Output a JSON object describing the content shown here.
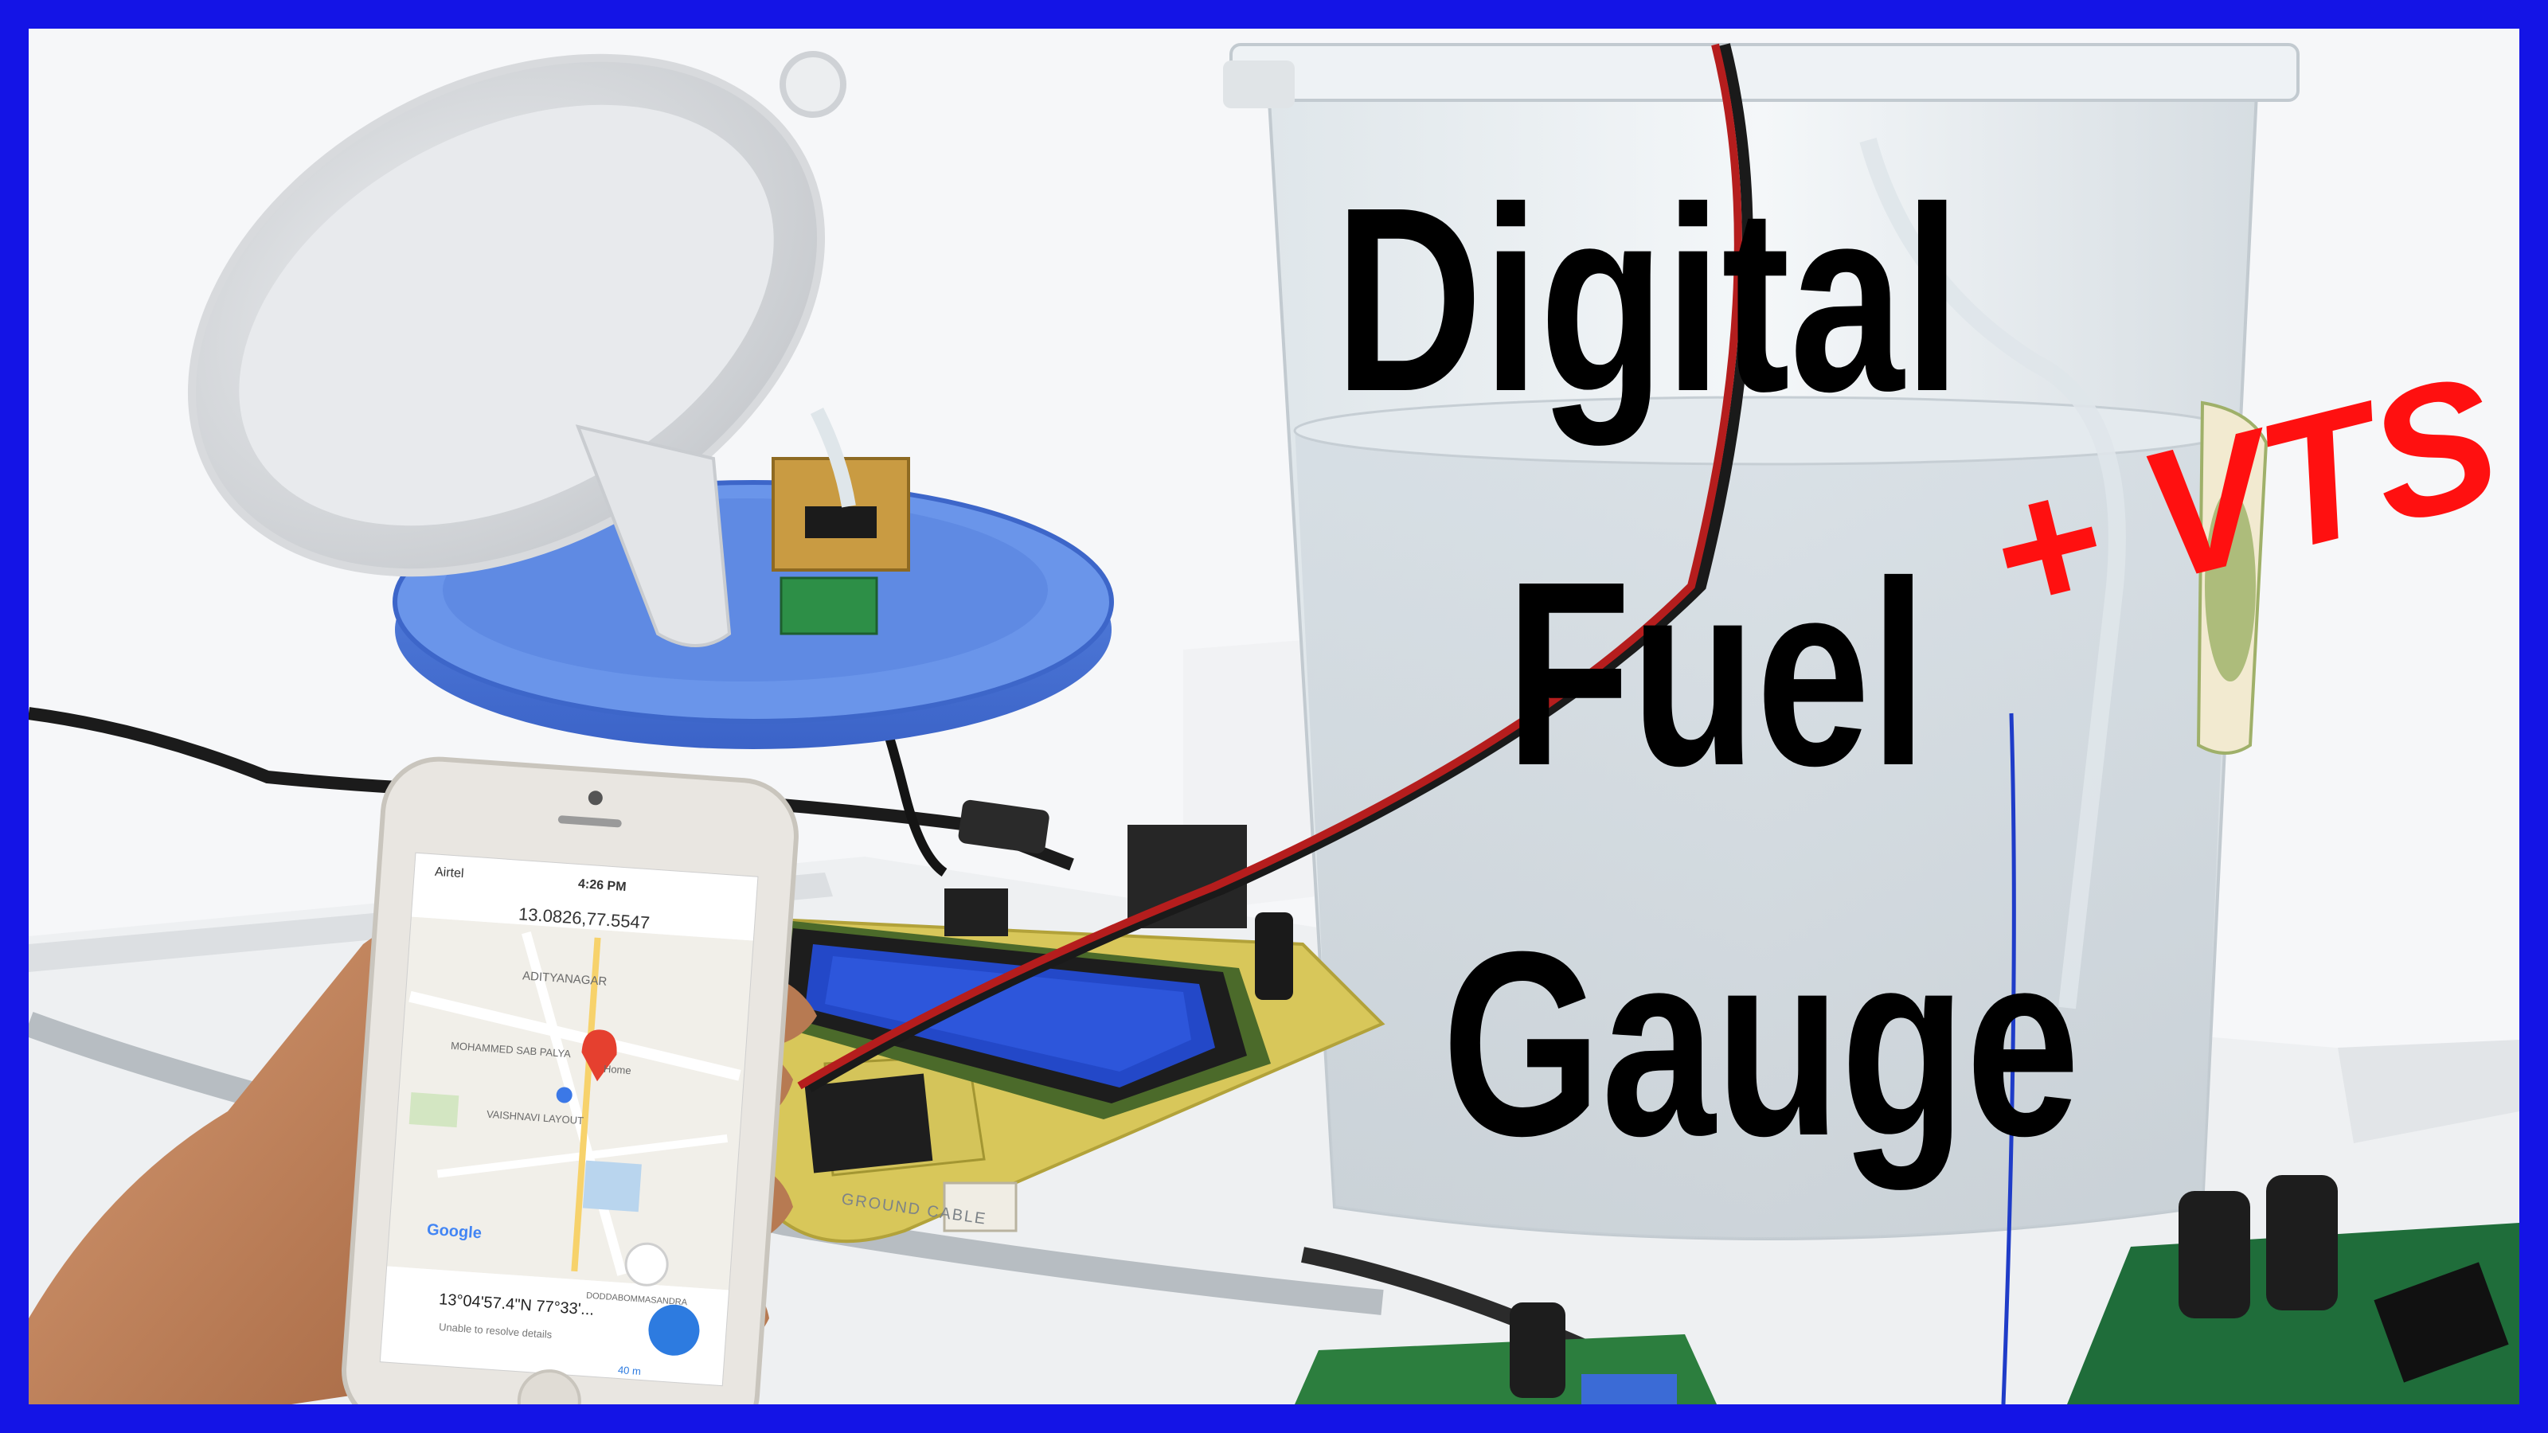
{
  "image": {
    "frame_color": "#1414e6",
    "background_color": "#f6f7f9"
  },
  "title": {
    "line1": "Digital",
    "line2": "Fuel",
    "line3": "Gauge",
    "accent": "+ VTS",
    "accent_color": "#ff1010"
  },
  "phone": {
    "carrier": "Airtel",
    "time": "4:26 PM",
    "search_query": "13.0826,77.5547",
    "map_labels": [
      "ADITYANAGAR",
      "MOHAMMED SAB PALYA",
      "VAISHNAVI LAYOUT",
      "Home",
      "DODDABOMMASANDRA"
    ],
    "logo": "Google",
    "coordinates": "13°04'57.4\"N 77°33'...",
    "status": "Unable to resolve details",
    "distance": "40 m"
  },
  "cable_label": "GROUND CABLE"
}
